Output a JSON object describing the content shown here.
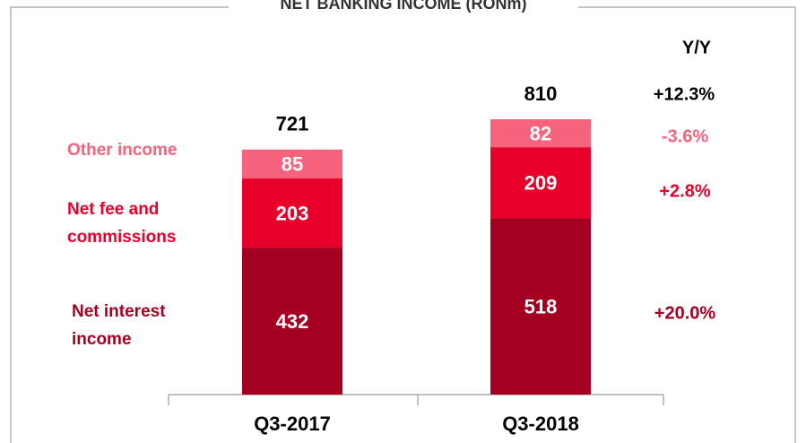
{
  "chart_data": {
    "type": "stacked_bar",
    "title": "NET BANKING INCOME (RONm)",
    "categories": [
      "Q3-2017",
      "Q3-2018"
    ],
    "series": [
      {
        "name": "Net interest income",
        "color": "#a50021",
        "values": [
          432,
          518
        ],
        "yoy": 20.0,
        "yoy_label": "+20.0%"
      },
      {
        "name": "Net fee and commissions",
        "color": "#e8002b",
        "values": [
          203,
          209
        ],
        "yoy": 2.8,
        "yoy_label": "+2.8%"
      },
      {
        "name": "Other income",
        "color": "#f7627c",
        "values": [
          85,
          82
        ],
        "yoy": -3.6,
        "yoy_label": "-3.6%"
      }
    ],
    "totals": [
      721,
      810
    ],
    "yoy_header": "Y/Y",
    "total_yoy": 12.3,
    "total_yoy_label": "+12.3%"
  }
}
